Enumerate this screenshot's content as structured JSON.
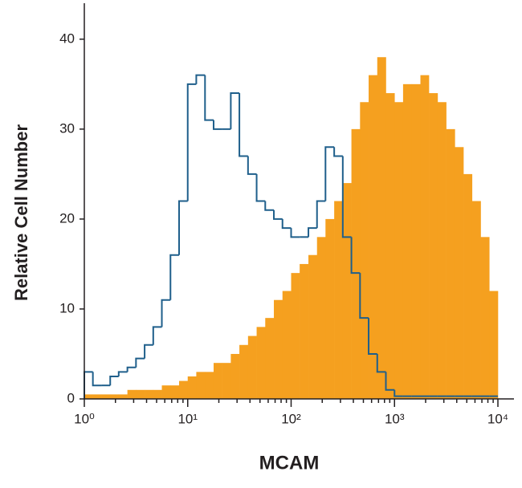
{
  "chart_data": {
    "type": "histogram",
    "xlabel": "MCAM",
    "ylabel": "Relative Cell Number",
    "xscale": "log",
    "bins": [
      1,
      1.21,
      1.47,
      1.78,
      2.15,
      2.61,
      3.16,
      3.83,
      4.64,
      5.62,
      6.81,
      8.25,
      10,
      12.1,
      14.7,
      17.8,
      21.5,
      26.1,
      31.6,
      38.3,
      46.4,
      56.2,
      68.1,
      82.5,
      100,
      121,
      147,
      178,
      215,
      261,
      316,
      383,
      464,
      562,
      681,
      825,
      1000,
      1210,
      1470,
      1780,
      2150,
      2610,
      3160,
      3830,
      4640,
      5620,
      6810,
      8250,
      10000
    ],
    "series": [
      {
        "color": "#f5a01f",
        "fill": true,
        "values": [
          0.5,
          0.5,
          0.5,
          0.5,
          0.5,
          1,
          1,
          1,
          1,
          1.5,
          1.5,
          2,
          2.5,
          3,
          3,
          4,
          4,
          5,
          6,
          7,
          8,
          9,
          11,
          12,
          14,
          15,
          16,
          18,
          20,
          22,
          24,
          30,
          33,
          36,
          38,
          34,
          33,
          35,
          35,
          36,
          34,
          33,
          30,
          28,
          25,
          22,
          18,
          12
        ]
      },
      {
        "color": "#1f5f8b",
        "fill": false,
        "values": [
          3,
          1.5,
          1.5,
          2.5,
          3,
          3.5,
          4.5,
          6,
          8,
          11,
          16,
          22,
          35,
          36,
          31,
          30,
          30,
          34,
          27,
          25,
          22,
          21,
          20,
          19,
          18,
          18,
          19,
          22,
          28,
          27,
          18,
          14,
          9,
          5,
          3,
          1,
          0.3,
          0.3,
          0.3,
          0.3,
          0.3,
          0.3,
          0.3,
          0.3,
          0.3,
          0.3,
          0.3,
          0.3
        ]
      }
    ],
    "xlim": [
      1,
      10000
    ],
    "xticks": [
      {
        "value": 1,
        "label": "10⁰"
      },
      {
        "value": 10,
        "label": "10¹"
      },
      {
        "value": 100,
        "label": "10²"
      },
      {
        "value": 1000,
        "label": "10³"
      },
      {
        "value": 10000,
        "label": "10⁴"
      }
    ],
    "ylim": [
      0,
      44
    ],
    "yticks": [
      0,
      10,
      20,
      30,
      40
    ]
  }
}
